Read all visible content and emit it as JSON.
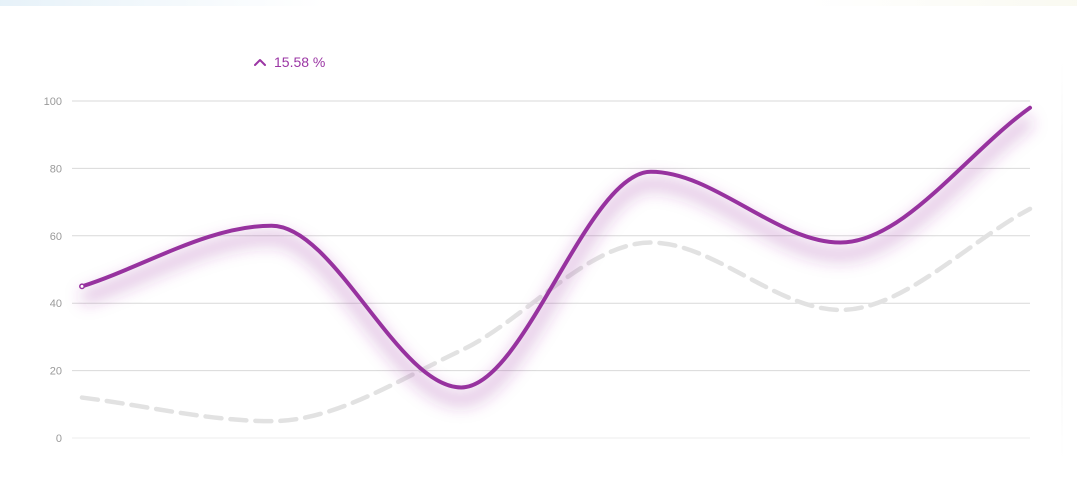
{
  "change": {
    "direction": "up",
    "value": "15.58 %",
    "color": "#9b36a4"
  },
  "chart_data": {
    "type": "line",
    "x": [
      0,
      1,
      2,
      3,
      4,
      5
    ],
    "ylim": [
      0,
      100
    ],
    "yticks": [
      "0",
      "20",
      "40",
      "60",
      "80",
      "100"
    ],
    "grid": true,
    "legend": "none",
    "series": [
      {
        "values": [
          45,
          63,
          15,
          79,
          58,
          98
        ],
        "color": "#97329f",
        "style": "solid"
      },
      {
        "values": [
          12,
          5,
          26,
          58,
          38,
          68
        ],
        "color": "#e2e2e2",
        "style": "dashed"
      }
    ]
  }
}
